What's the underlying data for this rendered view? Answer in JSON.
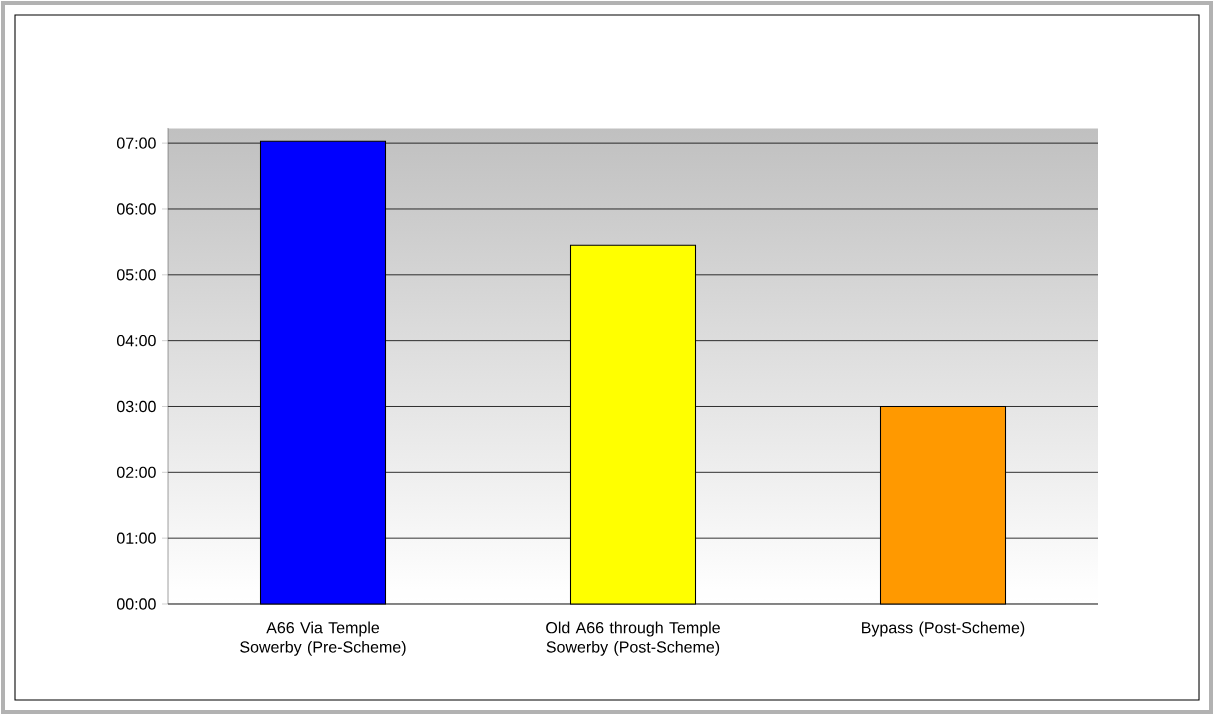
{
  "chart_data": {
    "type": "bar",
    "categories": [
      "A66 Via Temple Sowerby (Pre-Scheme)",
      "Old A66 through Temple Sowerby (Post-Scheme)",
      "Bypass (Post-Scheme)"
    ],
    "values": [
      7.03,
      5.45,
      3.0
    ],
    "colors": [
      "#0000ff",
      "#ffff00",
      "#ff9900"
    ],
    "ylim": [
      0,
      7.23
    ],
    "yticks": [
      {
        "value": 0,
        "label": "00:00"
      },
      {
        "value": 1,
        "label": "01:00"
      },
      {
        "value": 2,
        "label": "02:00"
      },
      {
        "value": 3,
        "label": "03:00"
      },
      {
        "value": 4,
        "label": "04:00"
      },
      {
        "value": 5,
        "label": "05:00"
      },
      {
        "value": 6,
        "label": "06:00"
      },
      {
        "value": 7,
        "label": "07:00"
      }
    ],
    "grid": "y"
  }
}
